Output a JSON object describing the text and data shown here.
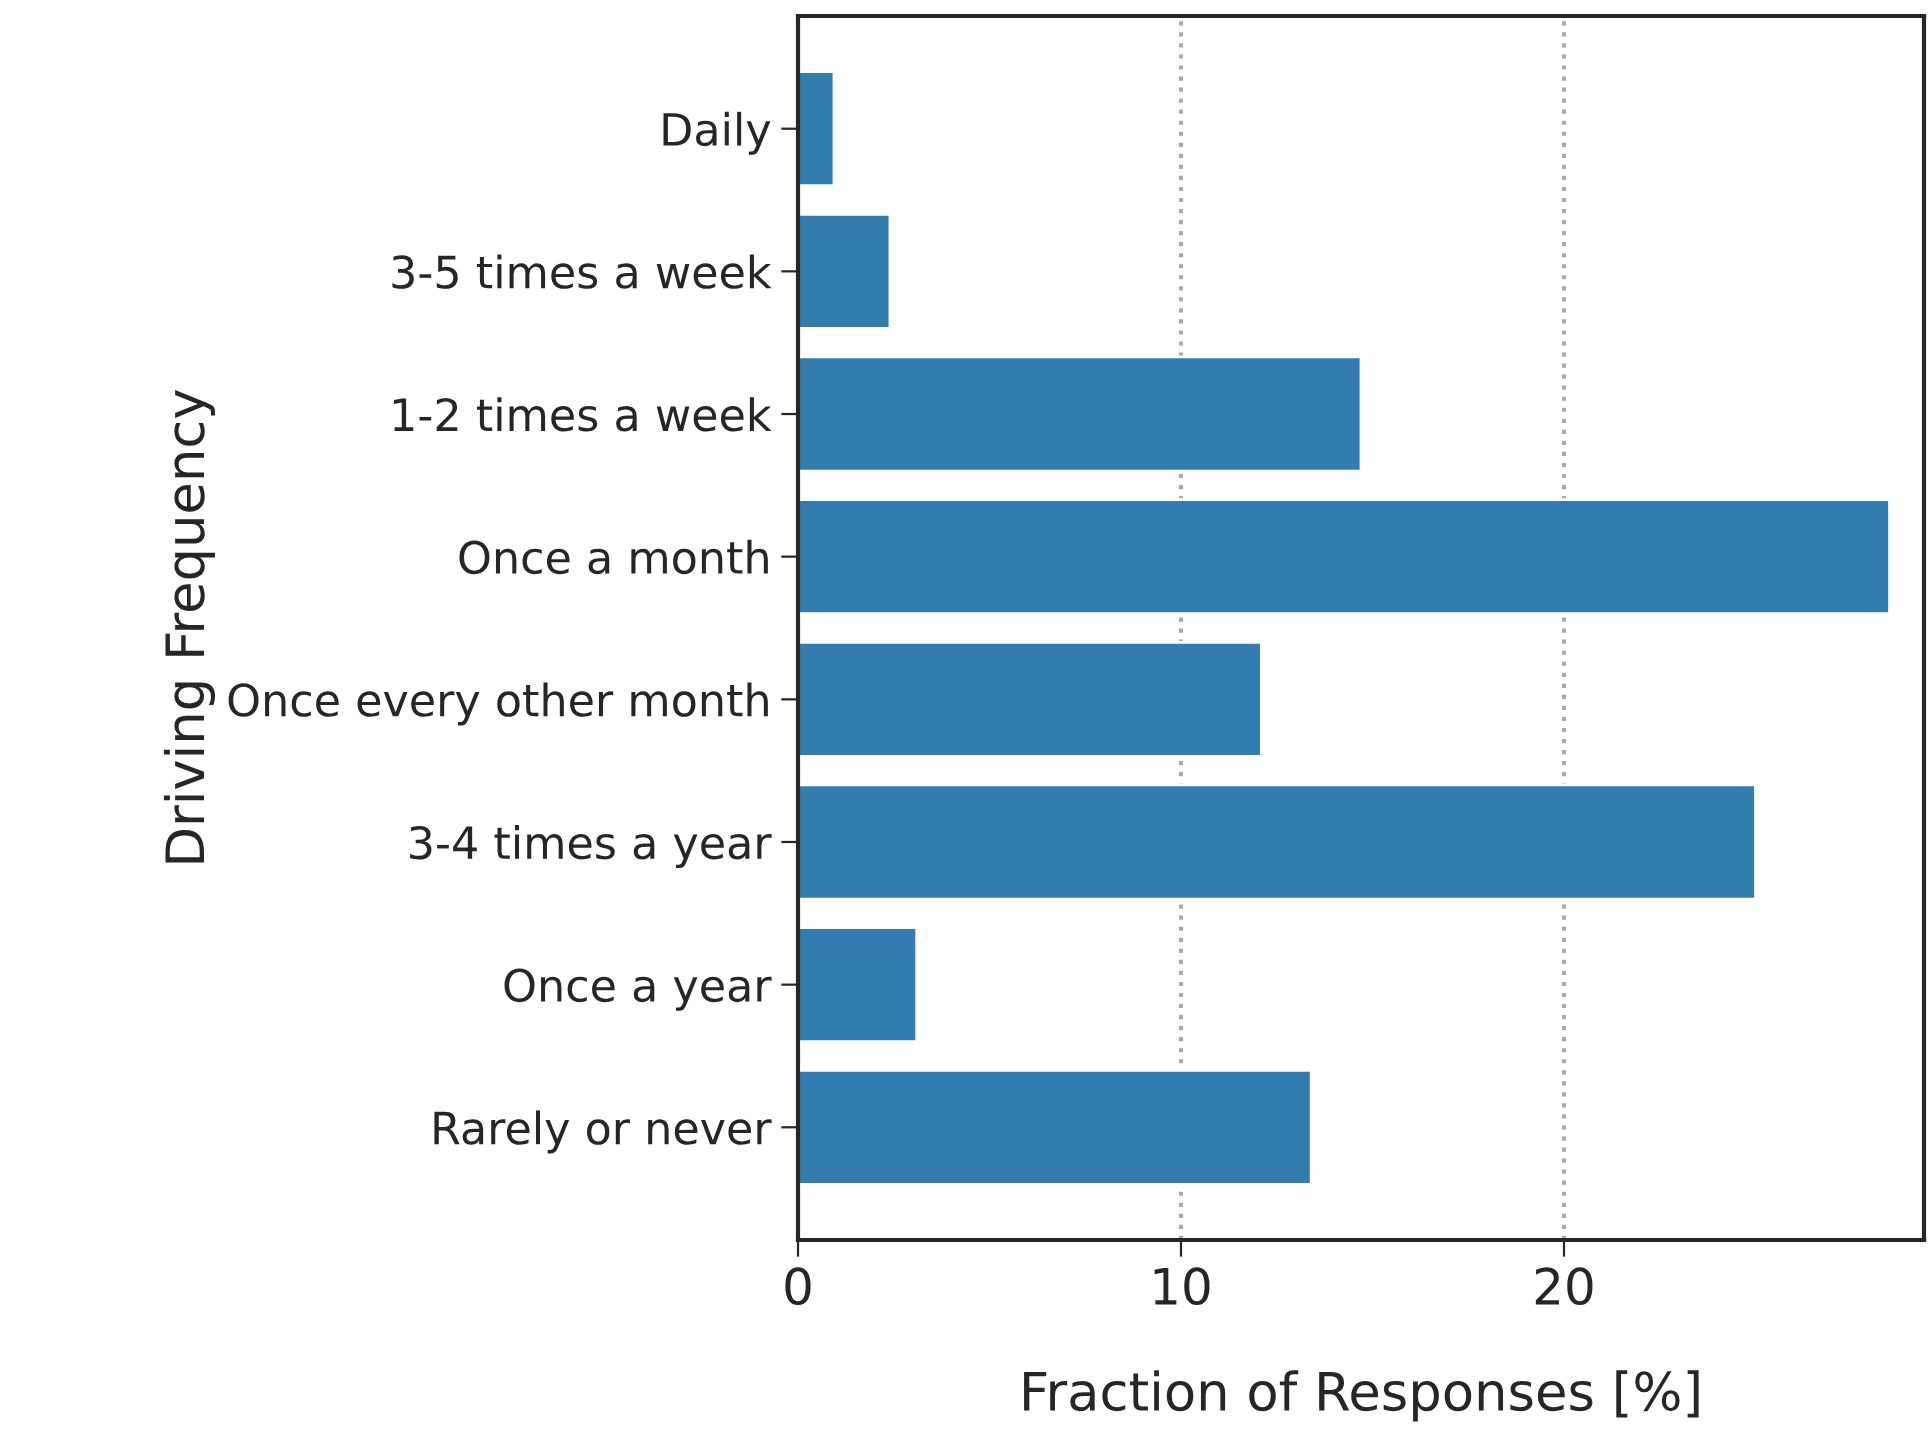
{
  "chart_data": {
    "type": "bar",
    "orientation": "horizontal",
    "xlabel": "Fraction of Responses [%]",
    "ylabel": "Driving Frequency",
    "categories": [
      "Daily",
      "3-5 times a week",
      "1-2 times a week",
      "Once a month",
      "Once every other month",
      "3-4 times a year",
      "Once a year",
      "Rarely or never"
    ],
    "values": [
      0.94,
      2.4,
      14.7,
      28.5,
      12.1,
      25.0,
      3.1,
      13.4
    ],
    "color": "#337caf",
    "xlim": [
      0,
      29.4
    ],
    "xticks": [
      0,
      10,
      20
    ],
    "grid": "x"
  }
}
